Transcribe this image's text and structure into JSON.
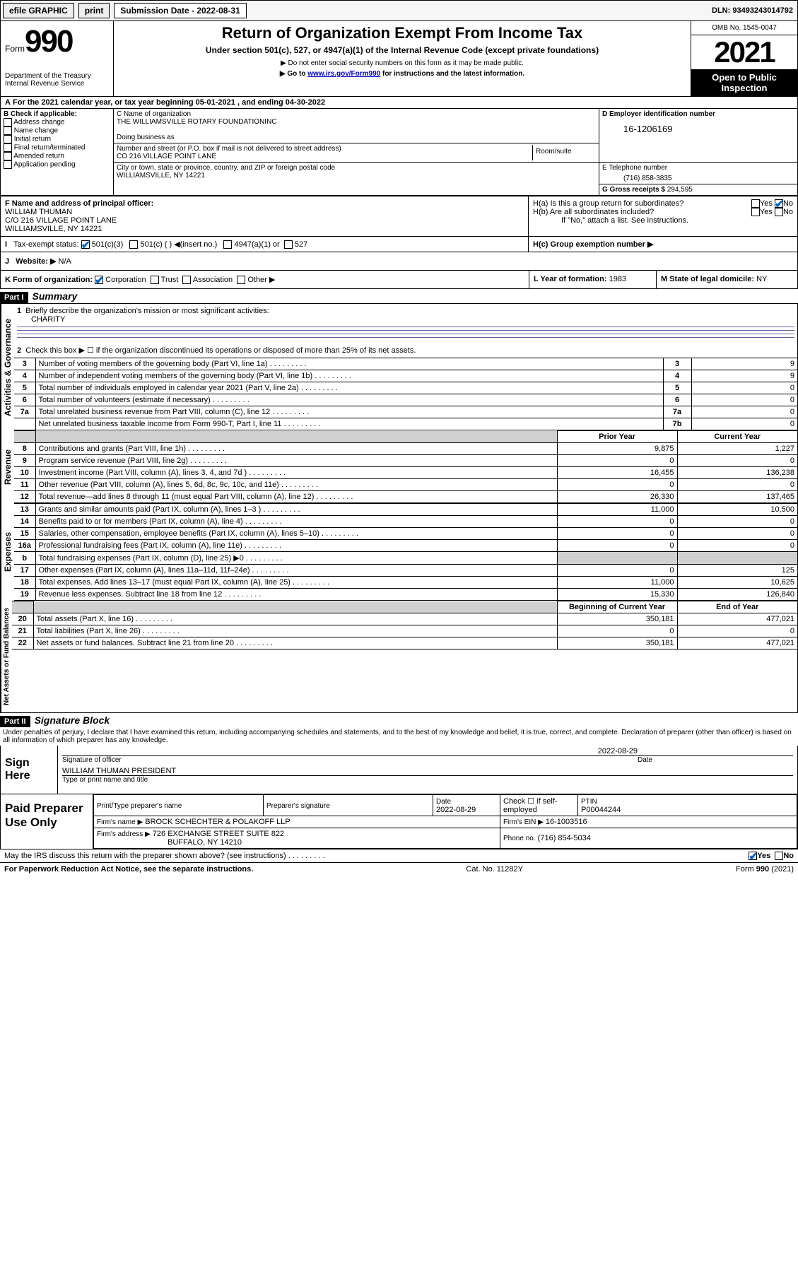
{
  "topbar": {
    "efile": "efile GRAPHIC",
    "print": "print",
    "sub_label": "Submission Date - 2022-08-31",
    "dln": "DLN: 93493243014792"
  },
  "header": {
    "form_prefix": "Form",
    "form_number": "990",
    "title": "Return of Organization Exempt From Income Tax",
    "subtitle": "Under section 501(c), 527, or 4947(a)(1) of the Internal Revenue Code (except private foundations)",
    "note1": "▶ Do not enter social security numbers on this form as it may be made public.",
    "note2_prefix": "▶ Go to ",
    "note2_link": "www.irs.gov/Form990",
    "note2_suffix": " for instructions and the latest information.",
    "dept": "Department of the Treasury\nInternal Revenue Service",
    "omb": "OMB No. 1545-0047",
    "year": "2021",
    "open": "Open to Public Inspection"
  },
  "periodA": {
    "text_prefix": "For the 2021 calendar year, or tax year beginning ",
    "begin": "05-01-2021",
    "mid": " , and ending ",
    "end": "04-30-2022"
  },
  "boxB": {
    "label": "B Check if applicable:",
    "items": [
      "Address change",
      "Name change",
      "Initial return",
      "Final return/terminated",
      "Amended return",
      "Application pending"
    ]
  },
  "boxC": {
    "label": "C Name of organization",
    "name": "THE WILLIAMSVILLE ROTARY FOUNDATIONINC",
    "dba_label": "Doing business as",
    "addr_label": "Number and street (or P.O. box if mail is not delivered to street address)",
    "room_label": "Room/suite",
    "addr": "CO 216 VILLAGE POINT LANE",
    "city_label": "City or town, state or province, country, and ZIP or foreign postal code",
    "city": "WILLIAMSVILLE, NY  14221"
  },
  "boxD": {
    "label": "D Employer identification number",
    "value": "16-1206169"
  },
  "boxE": {
    "label": "E Telephone number",
    "value": "(716) 858-3835"
  },
  "boxG": {
    "label": "G Gross receipts $",
    "value": "294,595"
  },
  "boxF": {
    "label": "F Name and address of principal officer:",
    "name": "WILLIAM THUMAN",
    "addr1": "C/O 216 VILLAGE POINT LANE",
    "addr2": "WILLIAMSVILLE, NY  14221"
  },
  "boxH": {
    "a": "H(a)  Is this a group return for subordinates?",
    "b": "H(b)  Are all subordinates included?",
    "b_note": "If \"No,\" attach a list. See instructions.",
    "c": "H(c)  Group exemption number ▶",
    "yes": "Yes",
    "no": "No"
  },
  "boxI": {
    "label": "Tax-exempt status:",
    "opts": [
      "501(c)(3)",
      "501(c) (  ) ◀(insert no.)",
      "4947(a)(1) or",
      "527"
    ]
  },
  "boxJ": {
    "label": "Website: ▶",
    "value": "N/A"
  },
  "boxK": {
    "label": "K Form of organization:",
    "opts": [
      "Corporation",
      "Trust",
      "Association",
      "Other ▶"
    ]
  },
  "boxL": {
    "label": "L Year of formation:",
    "value": "1983"
  },
  "boxM": {
    "label": "M State of legal domicile:",
    "value": "NY"
  },
  "partI": {
    "bar": "Part I",
    "title": "Summary",
    "q1": "Briefly describe the organization's mission or most significant activities:",
    "q1_ans": "CHARITY",
    "q2": "Check this box ▶ ☐  if the organization discontinued its operations or disposed of more than 25% of its net assets.",
    "side_labels": {
      "ag": "Activities & Governance",
      "rev": "Revenue",
      "exp": "Expenses",
      "net": "Net Assets or Fund Balances"
    },
    "gov_rows": [
      {
        "n": "3",
        "t": "Number of voting members of the governing body (Part VI, line 1a)",
        "box": "3",
        "v": "9"
      },
      {
        "n": "4",
        "t": "Number of independent voting members of the governing body (Part VI, line 1b)",
        "box": "4",
        "v": "9"
      },
      {
        "n": "5",
        "t": "Total number of individuals employed in calendar year 2021 (Part V, line 2a)",
        "box": "5",
        "v": "0"
      },
      {
        "n": "6",
        "t": "Total number of volunteers (estimate if necessary)",
        "box": "6",
        "v": "0"
      },
      {
        "n": "7a",
        "t": "Total unrelated business revenue from Part VIII, column (C), line 12",
        "box": "7a",
        "v": "0"
      },
      {
        "n": "",
        "t": "Net unrelated business taxable income from Form 990-T, Part I, line 11",
        "box": "7b",
        "v": "0"
      }
    ],
    "col_prior": "Prior Year",
    "col_current": "Current Year",
    "rev_rows": [
      {
        "n": "8",
        "t": "Contributions and grants (Part VIII, line 1h)",
        "p": "9,875",
        "c": "1,227"
      },
      {
        "n": "9",
        "t": "Program service revenue (Part VIII, line 2g)",
        "p": "0",
        "c": "0"
      },
      {
        "n": "10",
        "t": "Investment income (Part VIII, column (A), lines 3, 4, and 7d )",
        "p": "16,455",
        "c": "136,238"
      },
      {
        "n": "11",
        "t": "Other revenue (Part VIII, column (A), lines 5, 6d, 8c, 9c, 10c, and 11e)",
        "p": "0",
        "c": "0"
      },
      {
        "n": "12",
        "t": "Total revenue—add lines 8 through 11 (must equal Part VIII, column (A), line 12)",
        "p": "26,330",
        "c": "137,465"
      }
    ],
    "exp_rows": [
      {
        "n": "13",
        "t": "Grants and similar amounts paid (Part IX, column (A), lines 1–3 )",
        "p": "11,000",
        "c": "10,500"
      },
      {
        "n": "14",
        "t": "Benefits paid to or for members (Part IX, column (A), line 4)",
        "p": "0",
        "c": "0"
      },
      {
        "n": "15",
        "t": "Salaries, other compensation, employee benefits (Part IX, column (A), lines 5–10)",
        "p": "0",
        "c": "0"
      },
      {
        "n": "16a",
        "t": "Professional fundraising fees (Part IX, column (A), line 11e)",
        "p": "0",
        "c": "0"
      },
      {
        "n": "b",
        "t": "Total fundraising expenses (Part IX, column (D), line 25) ▶0",
        "p": "",
        "c": "",
        "grey": true
      },
      {
        "n": "17",
        "t": "Other expenses (Part IX, column (A), lines 11a–11d, 11f–24e)",
        "p": "0",
        "c": "125"
      },
      {
        "n": "18",
        "t": "Total expenses. Add lines 13–17 (must equal Part IX, column (A), line 25)",
        "p": "11,000",
        "c": "10,625"
      },
      {
        "n": "19",
        "t": "Revenue less expenses. Subtract line 18 from line 12",
        "p": "15,330",
        "c": "126,840"
      }
    ],
    "col_begin": "Beginning of Current Year",
    "col_end": "End of Year",
    "net_rows": [
      {
        "n": "20",
        "t": "Total assets (Part X, line 16)",
        "p": "350,181",
        "c": "477,021"
      },
      {
        "n": "21",
        "t": "Total liabilities (Part X, line 26)",
        "p": "0",
        "c": "0"
      },
      {
        "n": "22",
        "t": "Net assets or fund balances. Subtract line 21 from line 20",
        "p": "350,181",
        "c": "477,021"
      }
    ]
  },
  "partII": {
    "bar": "Part II",
    "title": "Signature Block",
    "decl": "Under penalties of perjury, I declare that I have examined this return, including accompanying schedules and statements, and to the best of my knowledge and belief, it is true, correct, and complete. Declaration of preparer (other than officer) is based on all information of which preparer has any knowledge.",
    "sign_here": "Sign Here",
    "sig_officer": "Signature of officer",
    "sig_date": "Date",
    "sig_date_val": "2022-08-29",
    "officer_name": "WILLIAM THUMAN  PRESIDENT",
    "type_name": "Type or print name and title",
    "paid": "Paid Preparer Use Only",
    "prep_name_label": "Print/Type preparer's name",
    "prep_sig_label": "Preparer's signature",
    "prep_date_label": "Date",
    "prep_date": "2022-08-29",
    "self_emp": "Check ☐ if self-employed",
    "ptin_label": "PTIN",
    "ptin": "P00044244",
    "firm_name_label": "Firm's name    ▶",
    "firm_name": "BROCK SCHECHTER & POLAKOFF LLP",
    "firm_ein_label": "Firm's EIN ▶",
    "firm_ein": "16-1003516",
    "firm_addr_label": "Firm's address ▶",
    "firm_addr1": "726 EXCHANGE STREET SUITE 822",
    "firm_addr2": "BUFFALO, NY  14210",
    "firm_phone_label": "Phone no.",
    "firm_phone": "(716) 854-5034",
    "discuss": "May the IRS discuss this return with the preparer shown above? (see instructions)",
    "discuss_yes": "Yes",
    "discuss_no": "No"
  },
  "footer": {
    "pra": "For Paperwork Reduction Act Notice, see the separate instructions.",
    "cat": "Cat. No. 11282Y",
    "form": "Form 990 (2021)"
  }
}
